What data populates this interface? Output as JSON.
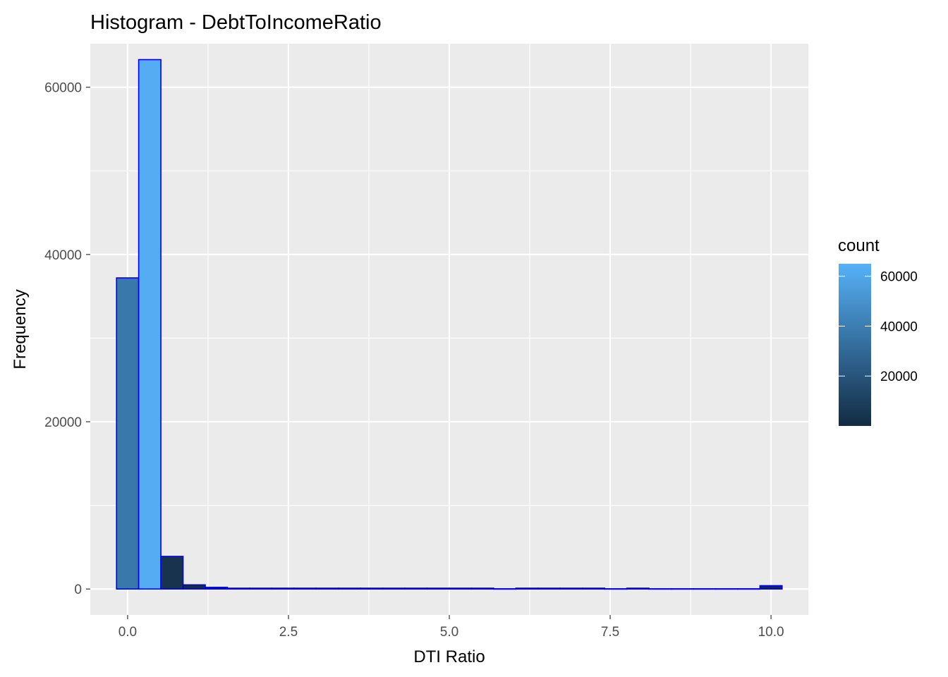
{
  "chart_data": {
    "type": "bar",
    "title": "Histogram - DebtToIncomeRatio",
    "xlabel": "DTI Ratio",
    "ylabel": "Frequency",
    "xlim": [
      -0.58,
      10.58
    ],
    "ylim": [
      -3100,
      65200
    ],
    "x_ticks": [
      0,
      2.5,
      5,
      7.5,
      10
    ],
    "x_tick_labels": [
      "0.0",
      "2.5",
      "5.0",
      "7.5",
      "10.0"
    ],
    "y_ticks": [
      0,
      20000,
      40000,
      60000
    ],
    "y_tick_labels": [
      "0",
      "20000",
      "40000",
      "60000"
    ],
    "grid": true,
    "bin_width": 0.3448,
    "bins": [
      {
        "x0": -0.172,
        "x1": 0.172,
        "count": 37200
      },
      {
        "x0": 0.172,
        "x1": 0.517,
        "count": 63300
      },
      {
        "x0": 0.517,
        "x1": 0.862,
        "count": 3900
      },
      {
        "x0": 0.862,
        "x1": 1.207,
        "count": 500
      },
      {
        "x0": 1.207,
        "x1": 1.552,
        "count": 200
      },
      {
        "x0": 1.552,
        "x1": 1.897,
        "count": 100
      },
      {
        "x0": 1.897,
        "x1": 2.241,
        "count": 100
      },
      {
        "x0": 2.241,
        "x1": 2.586,
        "count": 100
      },
      {
        "x0": 2.586,
        "x1": 2.931,
        "count": 100
      },
      {
        "x0": 2.931,
        "x1": 3.276,
        "count": 100
      },
      {
        "x0": 3.276,
        "x1": 3.621,
        "count": 100
      },
      {
        "x0": 3.621,
        "x1": 3.966,
        "count": 100
      },
      {
        "x0": 3.966,
        "x1": 4.31,
        "count": 100
      },
      {
        "x0": 4.31,
        "x1": 4.655,
        "count": 100
      },
      {
        "x0": 4.655,
        "x1": 5.0,
        "count": 100
      },
      {
        "x0": 5.0,
        "x1": 5.345,
        "count": 100
      },
      {
        "x0": 5.345,
        "x1": 5.69,
        "count": 100
      },
      {
        "x0": 5.69,
        "x1": 6.034,
        "count": 30
      },
      {
        "x0": 6.034,
        "x1": 6.379,
        "count": 100
      },
      {
        "x0": 6.379,
        "x1": 6.724,
        "count": 100
      },
      {
        "x0": 6.724,
        "x1": 7.069,
        "count": 100
      },
      {
        "x0": 7.069,
        "x1": 7.414,
        "count": 100
      },
      {
        "x0": 7.414,
        "x1": 7.759,
        "count": 30
      },
      {
        "x0": 7.759,
        "x1": 8.103,
        "count": 100
      },
      {
        "x0": 8.103,
        "x1": 8.448,
        "count": 30
      },
      {
        "x0": 8.448,
        "x1": 8.793,
        "count": 30
      },
      {
        "x0": 8.793,
        "x1": 9.138,
        "count": 30
      },
      {
        "x0": 9.138,
        "x1": 9.483,
        "count": 30
      },
      {
        "x0": 9.483,
        "x1": 9.828,
        "count": 30
      },
      {
        "x0": 9.828,
        "x1": 10.172,
        "count": 400
      }
    ],
    "bar_outline_color": "#0000ee",
    "colors": {
      "panel_background": "#ebebeb",
      "grid": "#ffffff",
      "gradient_low": "#132b43",
      "gradient_high": "#56b1f7"
    },
    "legend": {
      "title": "count",
      "position": "right",
      "type": "colorbar",
      "range": [
        0,
        65000
      ],
      "breaks": [
        20000,
        40000,
        60000
      ],
      "labels": [
        "20000",
        "40000",
        "60000"
      ]
    }
  }
}
